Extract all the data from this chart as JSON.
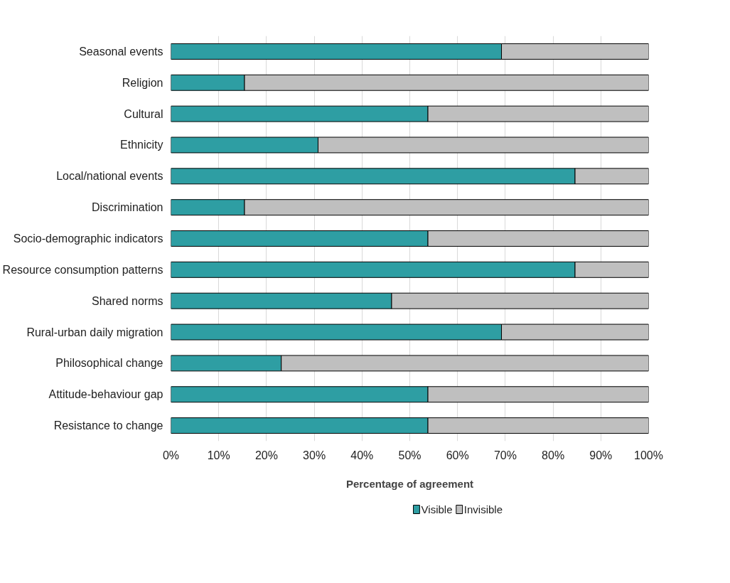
{
  "chart_data": {
    "type": "bar",
    "orientation": "horizontal",
    "stacked": true,
    "xlabel": "Percentage of agreement",
    "categories": [
      "Seasonal events",
      "Religion",
      "Cultural",
      "Ethnicity",
      "Local/national events",
      "Discrimination",
      "Socio-demographic indicators",
      "Resource consumption patterns",
      "Shared norms",
      "Rural-urban daily migration",
      "Philosophical change",
      "Attitude-behaviour gap",
      "Resistance to change"
    ],
    "series": [
      {
        "name": "Visible",
        "color": "#2e9ea3",
        "values": [
          69.2,
          15.4,
          53.8,
          30.8,
          84.6,
          15.4,
          53.8,
          84.6,
          46.2,
          69.2,
          23.1,
          53.8,
          53.8
        ]
      },
      {
        "name": "Invisible",
        "color": "#bfbfbf",
        "values": [
          30.8,
          84.6,
          46.2,
          69.2,
          15.4,
          84.6,
          46.2,
          15.4,
          53.8,
          30.8,
          76.9,
          46.2,
          46.2
        ]
      }
    ],
    "xlim": [
      0,
      100
    ],
    "xticks": [
      {
        "value": 0,
        "label": "0%"
      },
      {
        "value": 10,
        "label": "10%"
      },
      {
        "value": 20,
        "label": "20%"
      },
      {
        "value": 30,
        "label": "30%"
      },
      {
        "value": 40,
        "label": "40%"
      },
      {
        "value": 50,
        "label": "50%"
      },
      {
        "value": 60,
        "label": "60%"
      },
      {
        "value": 70,
        "label": "70%"
      },
      {
        "value": 80,
        "label": "80%"
      },
      {
        "value": 90,
        "label": "90%"
      },
      {
        "value": 100,
        "label": "100%"
      }
    ],
    "grid": "x",
    "legend": "bottom"
  }
}
